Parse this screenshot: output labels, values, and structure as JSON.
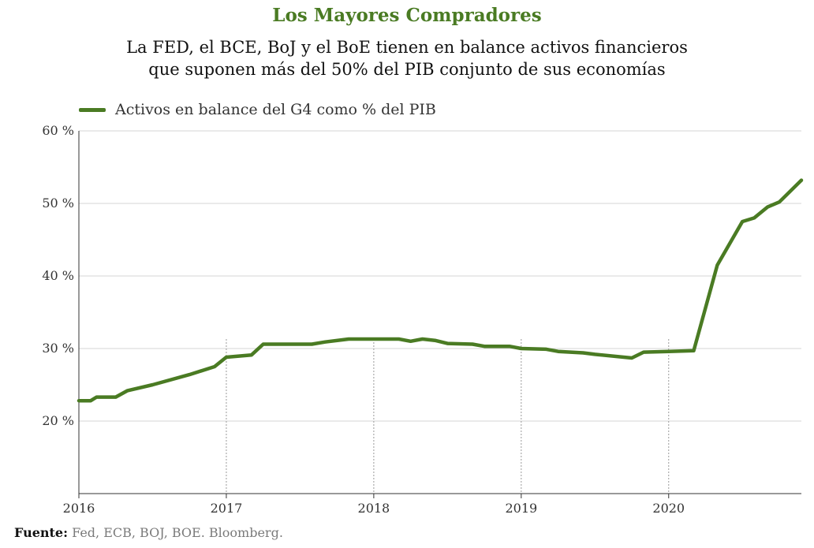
{
  "header": {
    "title": "Los Mayores Compradores",
    "subtitle_line1": "La FED, el BCE, BoJ y el BoE tienen en balance activos financieros",
    "subtitle_line2": "que suponen más del 50% del PIB conjunto de sus economías"
  },
  "footer": {
    "source_label": "Fuente:",
    "source_text": "Fed, ECB, BOJ, BOE. Bloomberg."
  },
  "chart_data": {
    "type": "line",
    "title": "",
    "xlabel": "",
    "ylabel": "",
    "xlim": [
      2016.0,
      2020.9
    ],
    "ylim": [
      10,
      60
    ],
    "grid": true,
    "legend_position": "top-left",
    "y_ticks": [
      20,
      30,
      40,
      50,
      60
    ],
    "y_tick_labels": [
      "20 %",
      "30 %",
      "40 %",
      "50 %",
      "60 %"
    ],
    "x_ticks": [
      2016,
      2017,
      2018,
      2019,
      2020
    ],
    "x_tick_labels": [
      "2016",
      "2017",
      "2018",
      "2019",
      "2020"
    ],
    "series": [
      {
        "name": "Activos en balance del G4 como % del PIB",
        "color": "#4a7b23",
        "x": [
          2016.0,
          2016.08,
          2016.12,
          2016.25,
          2016.33,
          2016.5,
          2016.75,
          2016.92,
          2017.0,
          2017.17,
          2017.25,
          2017.42,
          2017.58,
          2017.67,
          2017.83,
          2018.0,
          2018.17,
          2018.25,
          2018.33,
          2018.42,
          2018.5,
          2018.67,
          2018.75,
          2018.92,
          2019.0,
          2019.17,
          2019.25,
          2019.42,
          2019.5,
          2019.75,
          2019.83,
          2020.0,
          2020.17,
          2020.33,
          2020.5,
          2020.58,
          2020.67,
          2020.75,
          2020.9
        ],
        "y": [
          22.8,
          22.8,
          23.3,
          23.3,
          24.2,
          25.0,
          26.4,
          27.5,
          28.8,
          29.1,
          30.6,
          30.6,
          30.6,
          30.9,
          31.3,
          31.3,
          31.3,
          31.0,
          31.3,
          31.1,
          30.7,
          30.6,
          30.3,
          30.3,
          30.0,
          29.9,
          29.6,
          29.4,
          29.2,
          28.7,
          29.5,
          29.6,
          29.7,
          41.5,
          47.5,
          48.0,
          49.5,
          50.2,
          53.2
        ]
      }
    ]
  }
}
